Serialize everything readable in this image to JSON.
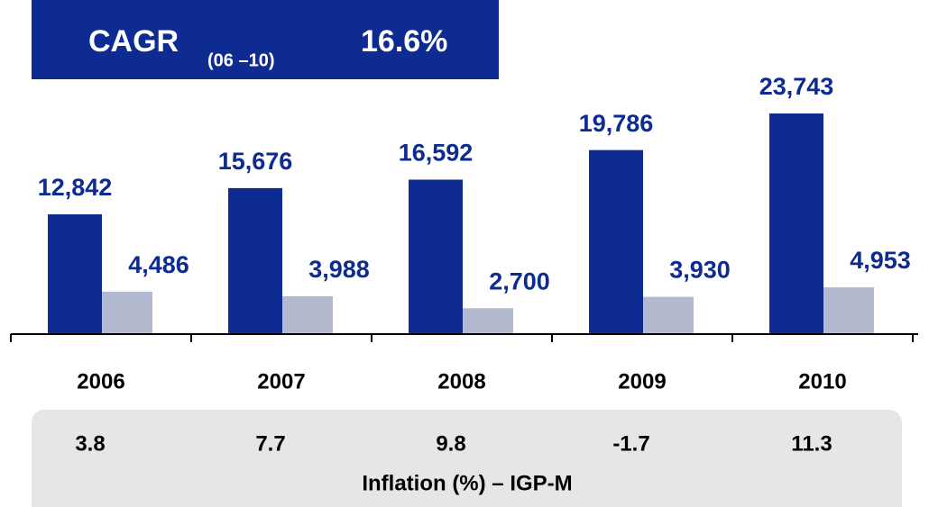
{
  "chart_data": {
    "type": "bar",
    "cagr": {
      "label": "CAGR",
      "period": "(06 –10)",
      "value": "16.6%"
    },
    "categories": [
      "2006",
      "2007",
      "2008",
      "2009",
      "2010"
    ],
    "series": [
      {
        "color": "#0d2b91",
        "values": [
          12842,
          15676,
          16592,
          19786,
          23743
        ],
        "value_labels": [
          "12,842",
          "15,676",
          "16,592",
          "19,786",
          "23,743"
        ]
      },
      {
        "color": "#b3bacf",
        "values": [
          4486,
          3988,
          2700,
          3930,
          4953
        ],
        "value_labels": [
          "4,486",
          "3,988",
          "2,700",
          "3,930",
          "4,953"
        ]
      }
    ],
    "inflation": {
      "label": "Inflation (%) – IGP-M",
      "values": [
        3.8,
        7.7,
        9.8,
        -1.7,
        11.3
      ]
    }
  }
}
